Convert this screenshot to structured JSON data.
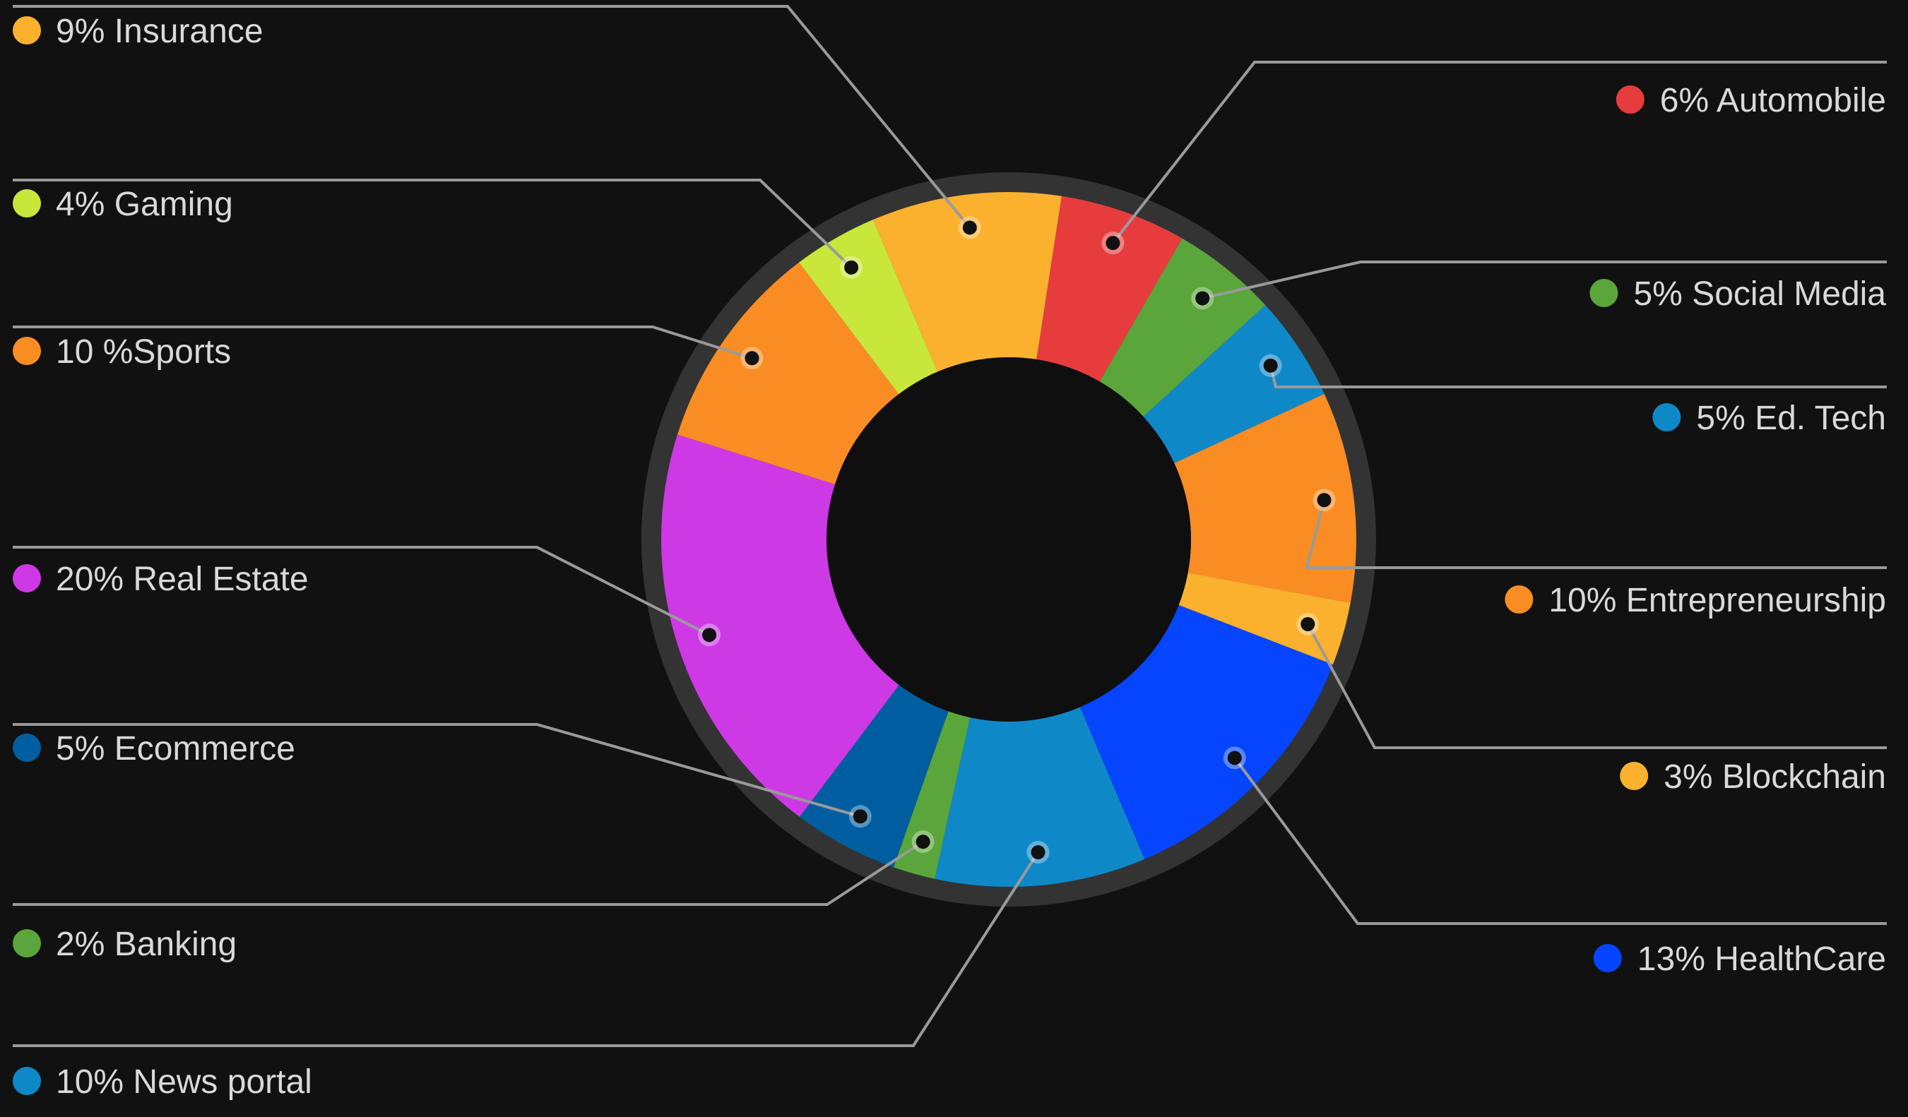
{
  "chart_data": {
    "type": "donut",
    "title": "",
    "slices": [
      {
        "label": "9% Insurance",
        "value": 9,
        "color": "#fbb12e"
      },
      {
        "label": "6% Automobile",
        "value": 6,
        "color": "#e73c3e"
      },
      {
        "label": "5% Social Media",
        "value": 5,
        "color": "#5aa63a"
      },
      {
        "label": "5% Ed. Tech",
        "value": 5,
        "color": "#0f88c8"
      },
      {
        "label": "10% Entrepreneurship",
        "value": 10,
        "color": "#fa8c24"
      },
      {
        "label": "3% Blockchain",
        "value": 3,
        "color": "#fbb12e"
      },
      {
        "label": "13% HealthCare",
        "value": 13,
        "color": "#0445fd"
      },
      {
        "label": "10% News portal",
        "value": 10,
        "color": "#0f88c8"
      },
      {
        "label": "2% Banking",
        "value": 2,
        "color": "#5aa63a"
      },
      {
        "label": "5% Ecommerce",
        "value": 5,
        "color": "#005ea0"
      },
      {
        "label": "20% Real Estate",
        "value": 20,
        "color": "#cd39e5"
      },
      {
        "label": "10 %Sports",
        "value": 10,
        "color": "#fa8c24"
      },
      {
        "label": "4% Gaming",
        "value": 4,
        "color": "#c9e63a"
      }
    ],
    "legend_placement": "both sides, with leader lines"
  }
}
